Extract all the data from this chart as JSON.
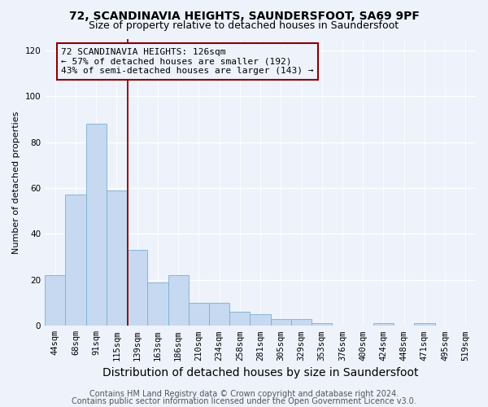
{
  "title1": "72, SCANDINAVIA HEIGHTS, SAUNDERSFOOT, SA69 9PF",
  "title2": "Size of property relative to detached houses in Saundersfoot",
  "xlabel": "Distribution of detached houses by size in Saundersfoot",
  "ylabel": "Number of detached properties",
  "categories": [
    "44sqm",
    "68sqm",
    "91sqm",
    "115sqm",
    "139sqm",
    "163sqm",
    "186sqm",
    "210sqm",
    "234sqm",
    "258sqm",
    "281sqm",
    "305sqm",
    "329sqm",
    "353sqm",
    "376sqm",
    "400sqm",
    "424sqm",
    "448sqm",
    "471sqm",
    "495sqm",
    "519sqm"
  ],
  "values": [
    22,
    57,
    88,
    59,
    33,
    19,
    22,
    10,
    10,
    6,
    5,
    3,
    3,
    1,
    0,
    0,
    1,
    0,
    1,
    0,
    0
  ],
  "bar_color": "#c6d9f0",
  "bar_edge_color": "#7BAFD4",
  "vline_x_index": 3.54,
  "vline_color": "#8B0000",
  "annotation_line1": "72 SCANDINAVIA HEIGHTS: 126sqm",
  "annotation_line2": "← 57% of detached houses are smaller (192)",
  "annotation_line3": "43% of semi-detached houses are larger (143) →",
  "annotation_box_color": "#8B0000",
  "ylim": [
    0,
    125
  ],
  "yticks": [
    0,
    20,
    40,
    60,
    80,
    100,
    120
  ],
  "footer1": "Contains HM Land Registry data © Crown copyright and database right 2024.",
  "footer2": "Contains public sector information licensed under the Open Government Licence v3.0.",
  "background_color": "#edf2fb",
  "grid_color": "#ffffff",
  "title1_fontsize": 10,
  "title2_fontsize": 9,
  "xlabel_fontsize": 10,
  "ylabel_fontsize": 8,
  "tick_fontsize": 7.5,
  "annotation_fontsize": 8,
  "footer_fontsize": 7
}
